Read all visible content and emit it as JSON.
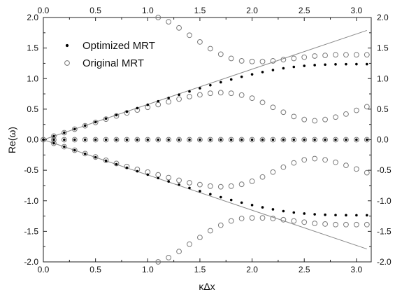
{
  "chart_data": {
    "type": "scatter",
    "title": "",
    "xlabel": "κΔx",
    "ylabel": "Re(ω)",
    "xlim": [
      0.0,
      3.14159
    ],
    "ylim": [
      -2.0,
      2.0
    ],
    "x_ticks": [
      "0.0",
      "0.5",
      "1.0",
      "1.5",
      "2.0",
      "2.5",
      "3.0"
    ],
    "y_ticks": [
      "-2.0",
      "-1.5",
      "-1.0",
      "-0.5",
      "0.0",
      "0.5",
      "1.0",
      "1.5",
      "2.0"
    ],
    "grid": false,
    "mirror_axes": true,
    "legend": {
      "placement": "top-left",
      "entries": [
        "Optimized MRT",
        "Original MRT"
      ]
    },
    "reference_line": {
      "style": "solid gray",
      "slope_estimate": 0.577
    },
    "series": [
      {
        "name": "Optimized MRT",
        "marker": "filled-dot",
        "branches": [
          {
            "x": [
              0.0,
              0.1,
              0.2,
              0.3,
              0.4,
              0.5,
              0.6,
              0.7,
              0.8,
              0.9,
              1.0,
              1.1,
              1.2,
              1.3,
              1.4,
              1.5,
              1.6,
              1.7,
              1.8,
              1.9,
              2.0,
              2.1,
              2.2,
              2.3,
              2.4,
              2.5,
              2.6,
              2.7,
              2.8,
              2.9,
              3.0,
              3.1
            ],
            "y": [
              0.0,
              0.058,
              0.115,
              0.173,
              0.231,
              0.288,
              0.345,
              0.402,
              0.459,
              0.516,
              0.572,
              0.628,
              0.683,
              0.737,
              0.79,
              0.842,
              0.892,
              0.94,
              0.986,
              1.03,
              1.07,
              1.107,
              1.14,
              1.169,
              1.192,
              1.209,
              1.221,
              1.229,
              1.234,
              1.236,
              1.237,
              1.237
            ]
          },
          {
            "x": [
              0.0,
              0.1,
              0.2,
              0.3,
              0.4,
              0.5,
              0.6,
              0.7,
              0.8,
              0.9,
              1.0,
              1.1,
              1.2,
              1.3,
              1.4,
              1.5,
              1.6,
              1.7,
              1.8,
              1.9,
              2.0,
              2.1,
              2.2,
              2.3,
              2.4,
              2.5,
              2.6,
              2.7,
              2.8,
              2.9,
              3.0,
              3.1
            ],
            "y": [
              0.0,
              -0.058,
              -0.115,
              -0.173,
              -0.231,
              -0.288,
              -0.345,
              -0.402,
              -0.459,
              -0.516,
              -0.572,
              -0.628,
              -0.683,
              -0.737,
              -0.79,
              -0.842,
              -0.892,
              -0.94,
              -0.986,
              -1.03,
              -1.07,
              -1.107,
              -1.14,
              -1.169,
              -1.192,
              -1.209,
              -1.221,
              -1.229,
              -1.234,
              -1.236,
              -1.237,
              -1.237
            ]
          },
          {
            "x": [
              0.1,
              0.2,
              0.3,
              0.4,
              0.5,
              0.6,
              0.7,
              0.8,
              0.9,
              1.0,
              1.1,
              1.2,
              1.3,
              1.4,
              1.5,
              1.6,
              1.7,
              1.8,
              1.9,
              2.0,
              2.1,
              2.2,
              2.3,
              2.4,
              2.5,
              2.6,
              2.7,
              2.8,
              2.9,
              3.0,
              3.1
            ],
            "y": [
              0,
              0,
              0,
              0,
              0,
              0,
              0,
              0,
              0,
              0,
              0,
              0,
              0,
              0,
              0,
              0,
              0,
              0,
              0,
              0,
              0,
              0,
              0,
              0,
              0,
              0,
              0,
              0,
              0,
              0,
              0
            ]
          }
        ]
      },
      {
        "name": "Original MRT",
        "marker": "open-circle",
        "branches": [
          {
            "x": [
              0.0,
              0.1,
              0.2,
              0.3,
              0.4,
              0.5,
              0.6,
              0.7,
              0.8,
              0.9,
              1.0,
              1.1,
              1.2,
              1.3,
              1.4,
              1.5,
              1.6,
              1.7,
              1.8,
              1.9,
              2.0,
              2.1,
              2.2,
              2.3,
              2.4,
              2.5,
              2.6,
              2.7,
              2.8,
              2.9,
              3.0,
              3.1
            ],
            "y": [
              0.0,
              0.058,
              0.115,
              0.172,
              0.228,
              0.283,
              0.337,
              0.389,
              0.438,
              0.486,
              0.53,
              0.575,
              0.62,
              0.665,
              0.705,
              0.735,
              0.76,
              0.77,
              0.76,
              0.73,
              0.68,
              0.61,
              0.53,
              0.45,
              0.38,
              0.33,
              0.31,
              0.33,
              0.37,
              0.42,
              0.48,
              0.54
            ]
          },
          {
            "x": [
              0.0,
              0.1,
              0.2,
              0.3,
              0.4,
              0.5,
              0.6,
              0.7,
              0.8,
              0.9,
              1.0,
              1.1,
              1.2,
              1.3,
              1.4,
              1.5,
              1.6,
              1.7,
              1.8,
              1.9,
              2.0,
              2.1,
              2.2,
              2.3,
              2.4,
              2.5,
              2.6,
              2.7,
              2.8,
              2.9,
              3.0,
              3.1
            ],
            "y": [
              0.0,
              -0.058,
              -0.115,
              -0.172,
              -0.228,
              -0.283,
              -0.337,
              -0.389,
              -0.438,
              -0.486,
              -0.53,
              -0.575,
              -0.62,
              -0.665,
              -0.705,
              -0.735,
              -0.76,
              -0.77,
              -0.76,
              -0.73,
              -0.68,
              -0.61,
              -0.53,
              -0.45,
              -0.38,
              -0.33,
              -0.31,
              -0.33,
              -0.37,
              -0.42,
              -0.48,
              -0.54
            ]
          },
          {
            "x": [
              1.1,
              1.2,
              1.3,
              1.4,
              1.5,
              1.6,
              1.7,
              1.8,
              1.9,
              2.0,
              2.1,
              2.2,
              2.3,
              2.4,
              2.5,
              2.6,
              2.7,
              2.8,
              2.9,
              3.0,
              3.1
            ],
            "y": [
              2.0,
              1.93,
              1.83,
              1.71,
              1.6,
              1.49,
              1.4,
              1.33,
              1.29,
              1.28,
              1.28,
              1.29,
              1.31,
              1.33,
              1.35,
              1.37,
              1.38,
              1.39,
              1.39,
              1.39,
              1.39
            ]
          },
          {
            "x": [
              1.1,
              1.2,
              1.3,
              1.4,
              1.5,
              1.6,
              1.7,
              1.8,
              1.9,
              2.0,
              2.1,
              2.2,
              2.3,
              2.4,
              2.5,
              2.6,
              2.7,
              2.8,
              2.9,
              3.0,
              3.1
            ],
            "y": [
              -2.0,
              -1.93,
              -1.83,
              -1.71,
              -1.6,
              -1.49,
              -1.4,
              -1.33,
              -1.29,
              -1.28,
              -1.28,
              -1.29,
              -1.31,
              -1.33,
              -1.35,
              -1.37,
              -1.38,
              -1.39,
              -1.39,
              -1.39,
              -1.39
            ]
          },
          {
            "x": [
              0.1,
              0.2,
              0.3,
              0.4,
              0.5,
              0.6,
              0.7,
              0.8,
              0.9,
              1.0,
              1.1,
              1.2,
              1.3,
              1.4,
              1.5,
              1.6,
              1.7,
              1.8,
              1.9,
              2.0,
              2.1,
              2.2,
              2.3,
              2.4,
              2.5,
              2.6,
              2.7,
              2.8,
              2.9,
              3.0,
              3.1
            ],
            "y": [
              0,
              0,
              0,
              0,
              0,
              0,
              0,
              0,
              0,
              0,
              0,
              0,
              0,
              0,
              0,
              0,
              0,
              0,
              0,
              0,
              0,
              0,
              0,
              0,
              0,
              0,
              0,
              0,
              0,
              0,
              0
            ]
          }
        ]
      }
    ]
  }
}
